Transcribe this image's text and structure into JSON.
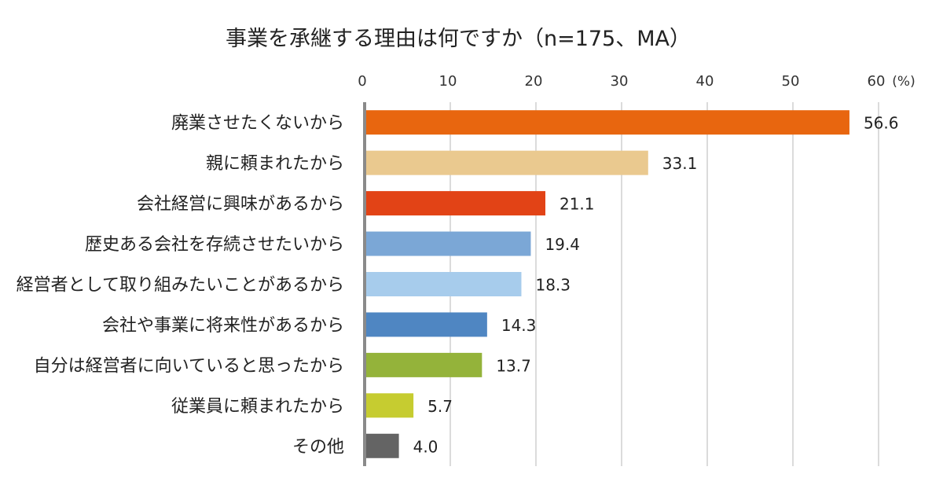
{
  "chart_data": {
    "type": "bar",
    "orientation": "horizontal",
    "title": "事業を承継する理由は何ですか（n=175、MA）",
    "unit_label": "(%)",
    "xlim": [
      0,
      60
    ],
    "x_ticks": [
      0,
      10,
      20,
      30,
      40,
      50,
      60
    ],
    "grid": true,
    "categories": [
      "廃業させたくないから",
      "親に頼まれたから",
      "会社経営に興味があるから",
      "歴史ある会社を存続させたいから",
      "経営者として取り組みたいことがあるから",
      "会社や事業に将来性があるから",
      "自分は経営者に向いていると思ったから",
      "従業員に頼まれたから",
      "その他"
    ],
    "values": [
      56.6,
      33.1,
      21.1,
      19.4,
      18.3,
      14.3,
      13.7,
      5.7,
      4.0
    ],
    "value_labels": [
      "56.6",
      "33.1",
      "21.1",
      "19.4",
      "18.3",
      "14.3",
      "13.7",
      "5.7",
      "4.0"
    ],
    "colors": [
      "#E8660F",
      "#EAC98F",
      "#E24316",
      "#7BA7D6",
      "#A7CCEC",
      "#4F86C2",
      "#94B33A",
      "#C6CC30",
      "#646464"
    ]
  }
}
